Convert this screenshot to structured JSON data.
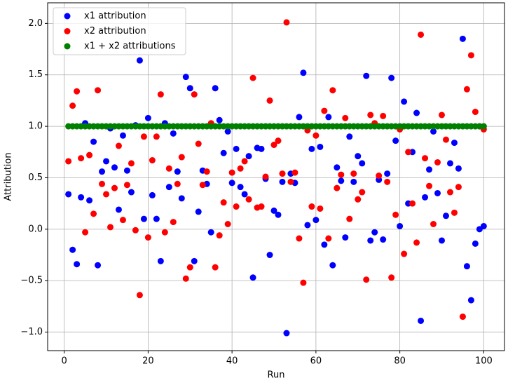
{
  "chart_data": {
    "type": "scatter",
    "xlabel": "Run",
    "ylabel": "Attribution",
    "x": [
      1,
      2,
      3,
      4,
      5,
      6,
      7,
      8,
      9,
      10,
      11,
      12,
      13,
      14,
      15,
      16,
      17,
      18,
      19,
      20,
      21,
      22,
      23,
      24,
      25,
      26,
      27,
      28,
      29,
      30,
      31,
      32,
      33,
      34,
      35,
      36,
      37,
      38,
      39,
      40,
      41,
      42,
      43,
      44,
      45,
      46,
      47,
      48,
      49,
      50,
      51,
      52,
      53,
      54,
      55,
      56,
      57,
      58,
      59,
      60,
      61,
      62,
      63,
      64,
      65,
      66,
      67,
      68,
      69,
      70,
      71,
      72,
      73,
      74,
      75,
      76,
      77,
      78,
      79,
      80,
      81,
      82,
      83,
      84,
      85,
      86,
      87,
      88,
      89,
      90,
      91,
      92,
      93,
      94,
      95,
      96,
      97,
      98,
      99,
      100
    ],
    "series": [
      {
        "name": "x1 attribution",
        "color": "#0000ff",
        "values": [
          0.34,
          -0.2,
          -0.34,
          0.31,
          1.03,
          0.28,
          0.85,
          -0.35,
          0.56,
          0.66,
          0.98,
          0.6,
          0.19,
          0.91,
          0.57,
          0.36,
          1.01,
          1.64,
          0.1,
          1.08,
          0.33,
          0.1,
          -0.31,
          1.03,
          0.41,
          0.93,
          0.56,
          0.3,
          1.48,
          1.37,
          -0.31,
          0.17,
          0.57,
          0.44,
          -0.03,
          1.37,
          1.06,
          0.74,
          0.95,
          0.45,
          0.78,
          0.41,
          0.34,
          0.71,
          -0.47,
          0.79,
          0.78,
          0.49,
          -0.25,
          0.18,
          0.14,
          0.46,
          -1.01,
          0.54,
          0.45,
          1.09,
          1.52,
          0.04,
          0.78,
          0.09,
          0.8,
          -0.15,
          1.09,
          -0.35,
          0.6,
          0.47,
          -0.08,
          0.9,
          0.46,
          0.71,
          0.64,
          1.49,
          -0.11,
          -0.03,
          0.48,
          -0.1,
          0.54,
          1.47,
          0.86,
          0.03,
          1.24,
          0.25,
          0.75,
          1.13,
          -0.89,
          0.31,
          0.58,
          0.95,
          0.35,
          -0.11,
          0.13,
          0.64,
          0.84,
          0.59,
          1.85,
          -0.36,
          -0.69,
          -0.14,
          0.0,
          0.03
        ]
      },
      {
        "name": "x2 attribution",
        "color": "#ff0000",
        "values": [
          0.66,
          1.2,
          1.34,
          0.69,
          -0.03,
          0.72,
          0.15,
          1.35,
          0.44,
          0.34,
          0.02,
          0.4,
          0.81,
          0.09,
          0.43,
          0.64,
          -0.01,
          -0.64,
          0.9,
          -0.08,
          0.67,
          0.9,
          1.31,
          -0.03,
          0.59,
          0.07,
          0.44,
          0.7,
          -0.48,
          -0.37,
          1.31,
          0.83,
          0.43,
          0.56,
          1.03,
          -0.37,
          -0.06,
          0.26,
          0.05,
          0.55,
          0.22,
          0.59,
          0.66,
          0.29,
          1.47,
          0.21,
          0.22,
          0.51,
          1.25,
          0.82,
          0.86,
          0.54,
          2.01,
          0.46,
          0.55,
          -0.09,
          -0.52,
          0.96,
          0.22,
          0.91,
          0.2,
          1.15,
          -0.09,
          1.35,
          0.4,
          0.53,
          1.08,
          0.1,
          0.54,
          0.29,
          0.36,
          -0.49,
          1.11,
          1.03,
          0.52,
          1.1,
          0.46,
          -0.47,
          0.14,
          0.97,
          -0.24,
          0.75,
          0.25,
          -0.13,
          1.89,
          0.69,
          0.42,
          0.05,
          0.65,
          1.11,
          0.87,
          0.36,
          0.16,
          0.41,
          -0.85,
          1.36,
          1.69,
          1.14,
          1.0,
          0.97
        ]
      },
      {
        "name": "x1 + x2 attributions",
        "color": "#008000",
        "values": [
          1,
          1,
          1,
          1,
          1,
          1,
          1,
          1,
          1,
          1,
          1,
          1,
          1,
          1,
          1,
          1,
          1,
          1,
          1,
          1,
          1,
          1,
          1,
          1,
          1,
          1,
          1,
          1,
          1,
          1,
          1,
          1,
          1,
          1,
          1,
          1,
          1,
          1,
          1,
          1,
          1,
          1,
          1,
          1,
          1,
          1,
          1,
          1,
          1,
          1,
          1,
          1,
          1,
          1,
          1,
          1,
          1,
          1,
          1,
          1,
          1,
          1,
          1,
          1,
          1,
          1,
          1,
          1,
          1,
          1,
          1,
          1,
          1,
          1,
          1,
          1,
          1,
          1,
          1,
          1,
          1,
          1,
          1,
          1,
          1,
          1,
          1,
          1,
          1,
          1,
          1,
          1,
          1,
          1,
          1,
          1,
          1,
          1,
          1,
          1
        ]
      }
    ],
    "xlim": [
      -3.95,
      104.95
    ],
    "xticks": [
      0,
      20,
      40,
      60,
      80,
      100
    ],
    "ylim": [
      -1.18,
      2.2
    ],
    "yticks": [
      {
        "value": -1.0,
        "label": "−1.0"
      },
      {
        "value": -0.5,
        "label": "−0.5"
      },
      {
        "value": 0.0,
        "label": "0.0"
      },
      {
        "value": 0.5,
        "label": "0.5"
      },
      {
        "value": 1.0,
        "label": "1.0"
      },
      {
        "value": 1.5,
        "label": "1.5"
      },
      {
        "value": 2.0,
        "label": "2.0"
      }
    ],
    "grid": true,
    "legend": "upper left"
  }
}
